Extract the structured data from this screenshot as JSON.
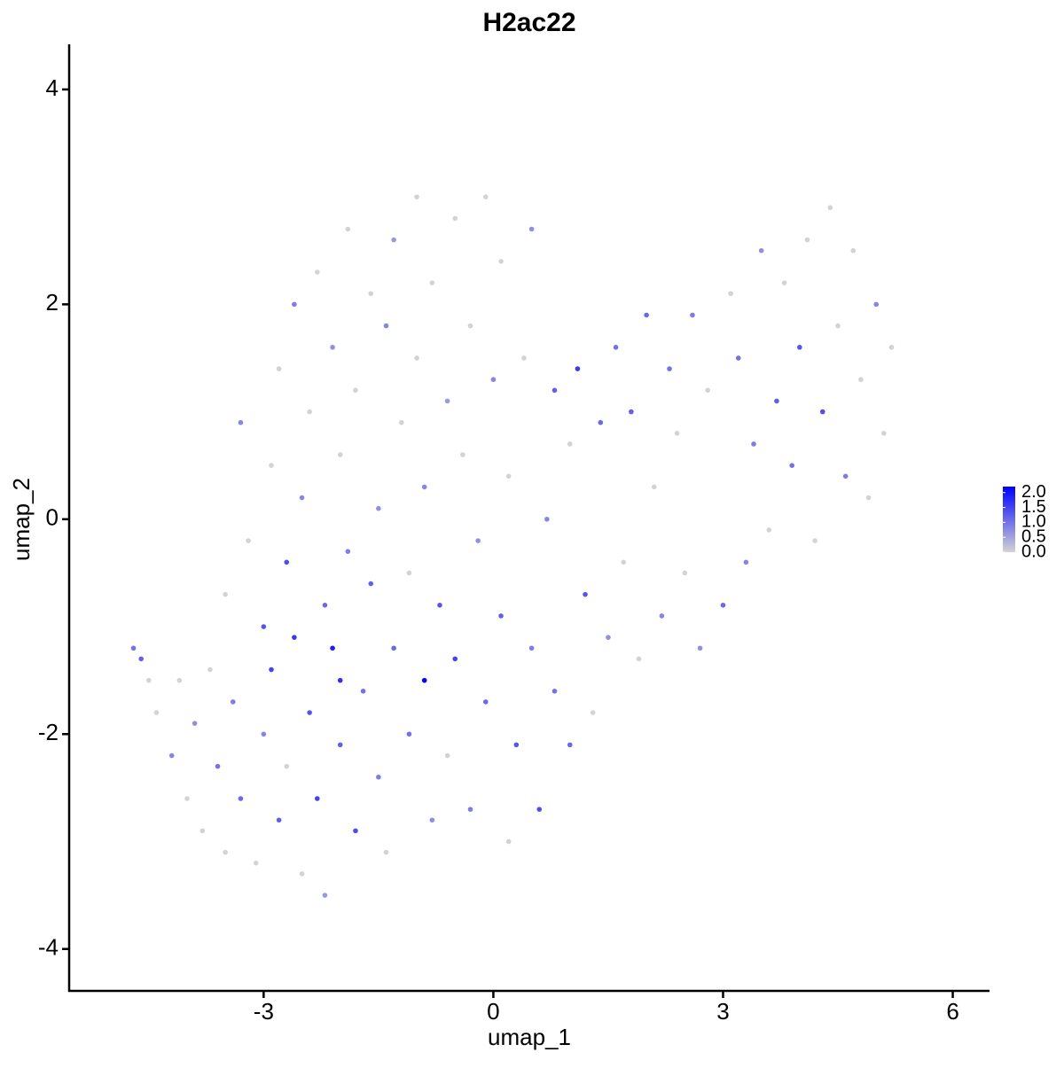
{
  "chart_data": {
    "type": "scatter",
    "title": "H2ac22",
    "x_label": "umap_1",
    "y_label": "umap_2",
    "xlim": [
      -5.54,
      6.48
    ],
    "ylim": [
      -4.39,
      4.42
    ],
    "xticks": [
      -3,
      0,
      3,
      6
    ],
    "yticks": [
      -4,
      -2,
      0,
      2,
      4
    ],
    "low_color": "#d3d3d3",
    "high_color": "#0000ff",
    "color_lim": [
      0,
      2.2
    ],
    "color_ticks": [
      {
        "value": 0,
        "label": "0.0"
      },
      {
        "value": 0.5,
        "label": "0.5"
      },
      {
        "value": 1,
        "label": "1.0"
      },
      {
        "value": 1.5,
        "label": "1.5"
      },
      {
        "value": 2,
        "label": "2.0"
      }
    ],
    "series": [
      {
        "x": [
          -4.7,
          -4.6,
          -4.5,
          -4.4,
          -4.2,
          -4.1,
          -4.0,
          -3.9,
          -3.8,
          -3.7,
          -3.6,
          -3.5,
          -3.5,
          -3.4,
          -3.3,
          -3.2,
          -3.1,
          -3.0,
          -3.0,
          -2.9,
          -2.9,
          -2.8,
          -2.8,
          -2.7,
          -2.7,
          -2.6,
          -2.6,
          -2.5,
          -2.5,
          -2.4,
          -2.4,
          -2.3,
          -2.3,
          -2.2,
          -2.2,
          -2.1,
          -2.1,
          -2.0,
          -2.0,
          -1.9,
          -1.9,
          -1.8,
          -1.8,
          -1.7,
          -1.6,
          -1.6,
          -1.5,
          -1.5,
          -1.4,
          -1.4,
          -1.3,
          -1.3,
          -1.2,
          -1.1,
          -1.1,
          -1.0,
          -1.0,
          -0.9,
          -0.9,
          -0.8,
          -0.8,
          -0.7,
          -0.6,
          -0.6,
          -0.5,
          -0.5,
          -0.4,
          -0.3,
          -0.3,
          -0.2,
          -0.1,
          -0.1,
          0.0,
          0.1,
          0.1,
          0.2,
          0.2,
          0.3,
          0.4,
          0.5,
          0.5,
          0.6,
          0.7,
          0.8,
          0.8,
          1.0,
          1.0,
          1.1,
          1.2,
          1.3,
          1.4,
          1.5,
          1.6,
          1.7,
          1.8,
          1.9,
          2.0,
          2.1,
          2.2,
          2.3,
          2.4,
          2.5,
          2.6,
          2.7,
          2.8,
          3.0,
          3.1,
          3.2,
          3.3,
          3.4,
          3.5,
          3.6,
          3.7,
          3.8,
          3.9,
          4.0,
          4.1,
          4.2,
          4.3,
          4.4,
          4.5,
          4.6,
          4.7,
          4.8,
          4.9,
          5.0,
          5.1,
          5.2,
          -3.3,
          -2.0
        ],
        "values": [
          -1.2,
          -1.3,
          -1.5,
          -1.8,
          -2.2,
          -1.5,
          -2.6,
          -1.9,
          -2.9,
          -1.4,
          -2.3,
          -3.1,
          -0.7,
          -1.7,
          -2.6,
          -0.2,
          -3.2,
          -1.0,
          -2.0,
          0.5,
          -1.4,
          -2.8,
          1.4,
          -0.4,
          -2.3,
          2.0,
          -1.1,
          -3.3,
          0.2,
          -1.8,
          1.0,
          -2.6,
          2.3,
          -0.8,
          -3.5,
          1.6,
          -1.2,
          -2.1,
          0.6,
          2.7,
          -0.3,
          -2.9,
          1.2,
          -1.6,
          2.1,
          -0.6,
          0.1,
          -2.4,
          1.8,
          -3.1,
          -1.2,
          2.6,
          0.9,
          -0.5,
          -2.0,
          1.5,
          3.0,
          -1.5,
          0.3,
          -2.8,
          2.2,
          -0.8,
          1.1,
          -2.2,
          2.8,
          -1.3,
          0.6,
          -2.7,
          1.8,
          -0.2,
          3.0,
          -1.7,
          1.3,
          -0.9,
          2.4,
          -3.0,
          0.4,
          -2.1,
          1.5,
          -1.2,
          2.7,
          -2.7,
          0.0,
          1.2,
          -1.6,
          -2.1,
          0.7,
          1.4,
          -0.7,
          -1.8,
          0.9,
          -1.1,
          1.6,
          -0.4,
          1.0,
          -1.3,
          1.9,
          0.3,
          -0.9,
          1.4,
          0.8,
          -0.5,
          1.9,
          -1.2,
          1.2,
          -0.8,
          2.1,
          1.5,
          -0.4,
          0.7,
          2.5,
          -0.1,
          1.1,
          2.2,
          0.5,
          1.6,
          2.6,
          -0.2,
          1.0,
          2.9,
          1.8,
          0.4,
          2.5,
          1.3,
          0.2,
          2.0,
          0.8,
          1.6,
          0.9,
          -1.5
        ],
        "expression": [
          1.0,
          1.2,
          0,
          0,
          0.8,
          0,
          0,
          0.7,
          0,
          0,
          1.0,
          0,
          0,
          0.9,
          1.1,
          0,
          0,
          1.3,
          0.8,
          0,
          1.5,
          1.2,
          0,
          1.4,
          0,
          0.9,
          1.6,
          0,
          0.8,
          1.3,
          0,
          1.5,
          0,
          1.1,
          0.6,
          0.7,
          1.9,
          1.2,
          0,
          0,
          0.9,
          1.4,
          0,
          1.0,
          0,
          1.2,
          0.7,
          0.9,
          0.8,
          0,
          1.1,
          0.6,
          0,
          0,
          1.0,
          0,
          0,
          2.2,
          0.8,
          0.7,
          0,
          1.3,
          0.6,
          0,
          0,
          1.5,
          0,
          0.9,
          0,
          0.7,
          0,
          1.1,
          0.8,
          1.2,
          0,
          0,
          0,
          1.3,
          0,
          0.9,
          0.7,
          1.4,
          0.8,
          1.2,
          1.0,
          1.1,
          0,
          1.6,
          1.3,
          0,
          1.1,
          0.7,
          1.0,
          0,
          1.2,
          0,
          1.1,
          0,
          0.8,
          1.0,
          0,
          0,
          0.9,
          0.7,
          0,
          1.1,
          0,
          1.0,
          0.8,
          0.9,
          0.7,
          0,
          1.2,
          0,
          1.0,
          1.3,
          0,
          0,
          1.4,
          0,
          0,
          0.9,
          0,
          0,
          0,
          0.8,
          0,
          0,
          0.8,
          1.7
        ]
      }
    ]
  }
}
